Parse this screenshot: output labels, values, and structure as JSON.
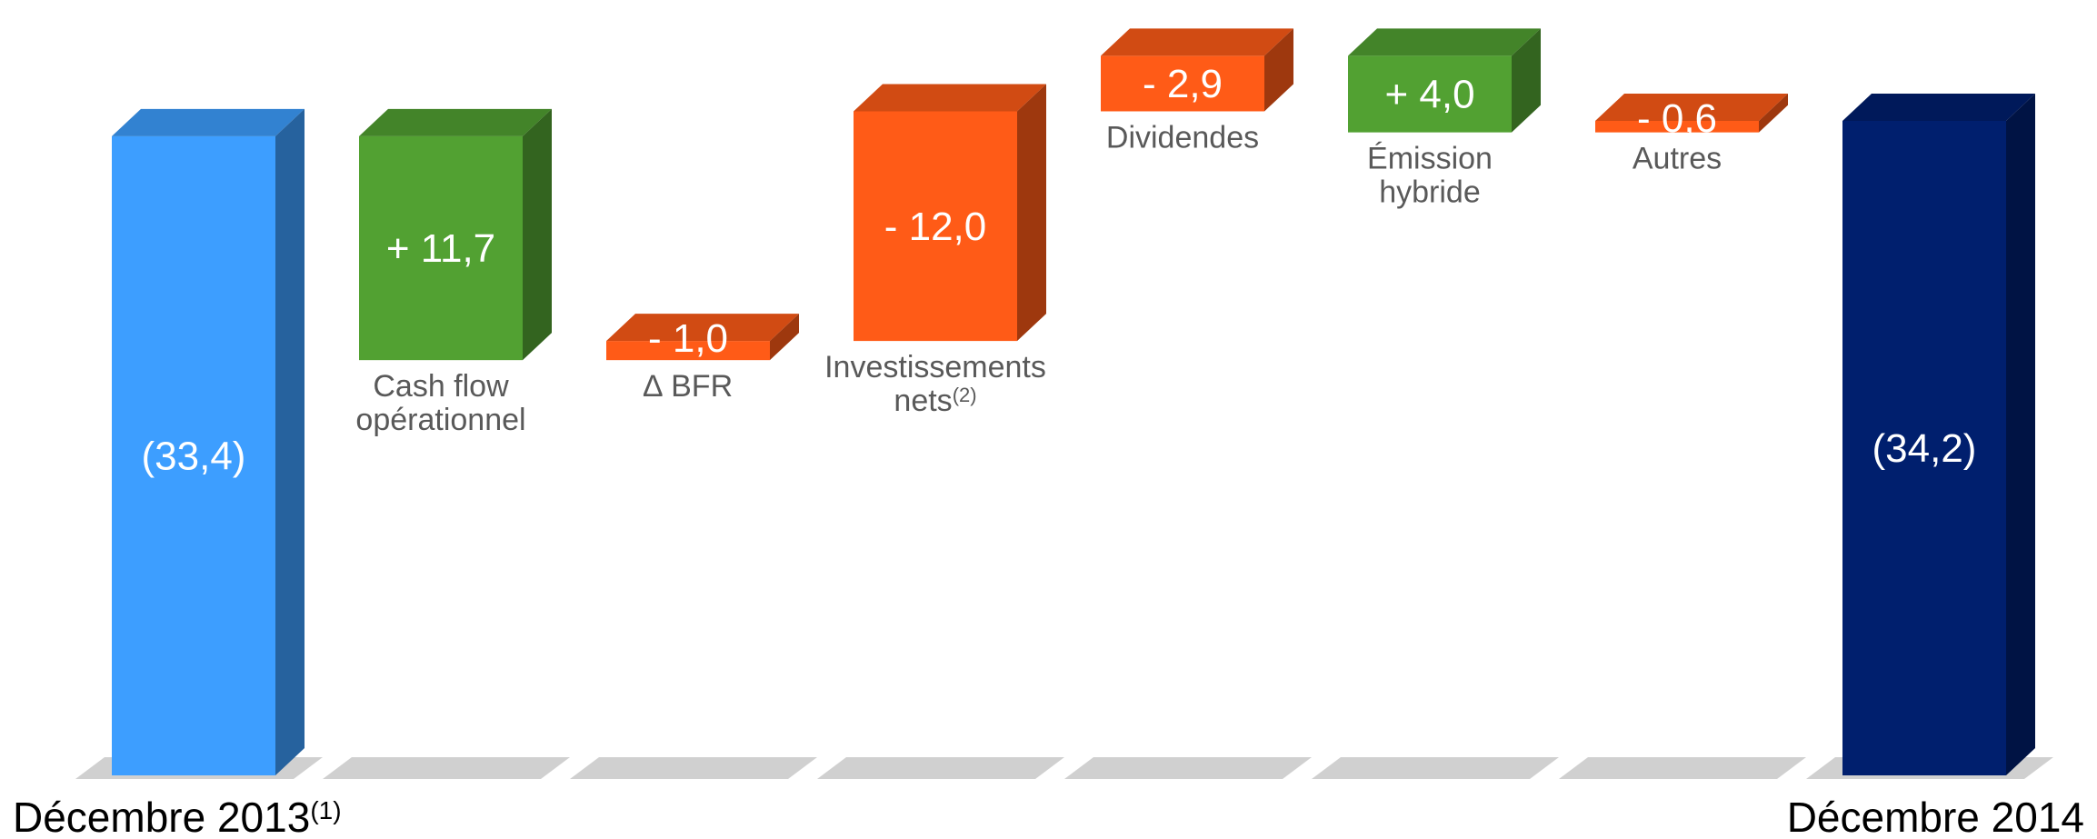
{
  "chart_data": {
    "type": "bar",
    "subtype": "waterfall-3d",
    "title": "",
    "xlabel": "",
    "ylabel": "",
    "colors": {
      "start": "#3d9eff",
      "end": "#001f6e",
      "increase": "#52a132",
      "decrease": "#ff5b17",
      "floor": "#c8c8c8"
    },
    "bars": [
      {
        "id": "start",
        "kind": "total",
        "value": -33.4,
        "value_label": "(33,4)",
        "category": "Décembre 2013",
        "category_sup": "(1)"
      },
      {
        "id": "cash",
        "kind": "increase",
        "value": 11.7,
        "value_label": "+ 11,7",
        "category": "Cash flow opérationnel",
        "label_lines": [
          "Cash flow",
          "opérationnel"
        ]
      },
      {
        "id": "bfr",
        "kind": "decrease",
        "value": -1.0,
        "value_label": "- 1,0",
        "category": "∆ BFR",
        "label_lines": [
          "∆ BFR"
        ]
      },
      {
        "id": "invest",
        "kind": "decrease",
        "value": -12.0,
        "value_label": "- 12,0",
        "category": "Investissements nets",
        "label_lines": [
          "Investissements",
          "nets"
        ],
        "label_sup": "(2)"
      },
      {
        "id": "div",
        "kind": "decrease",
        "value": -2.9,
        "value_label": "- 2,9",
        "category": "Dividendes",
        "label_lines": [
          "Dividendes"
        ]
      },
      {
        "id": "hybrid",
        "kind": "increase",
        "value": 4.0,
        "value_label": "+ 4,0",
        "category": "Émission hybride",
        "label_lines": [
          "Émission",
          "hybride"
        ]
      },
      {
        "id": "autres",
        "kind": "decrease",
        "value": -0.6,
        "value_label": "- 0,6",
        "category": "Autres",
        "label_lines": [
          "Autres"
        ]
      },
      {
        "id": "end",
        "kind": "total",
        "value": -34.2,
        "value_label": "(34,2)",
        "category": "Décembre 2014"
      }
    ]
  }
}
